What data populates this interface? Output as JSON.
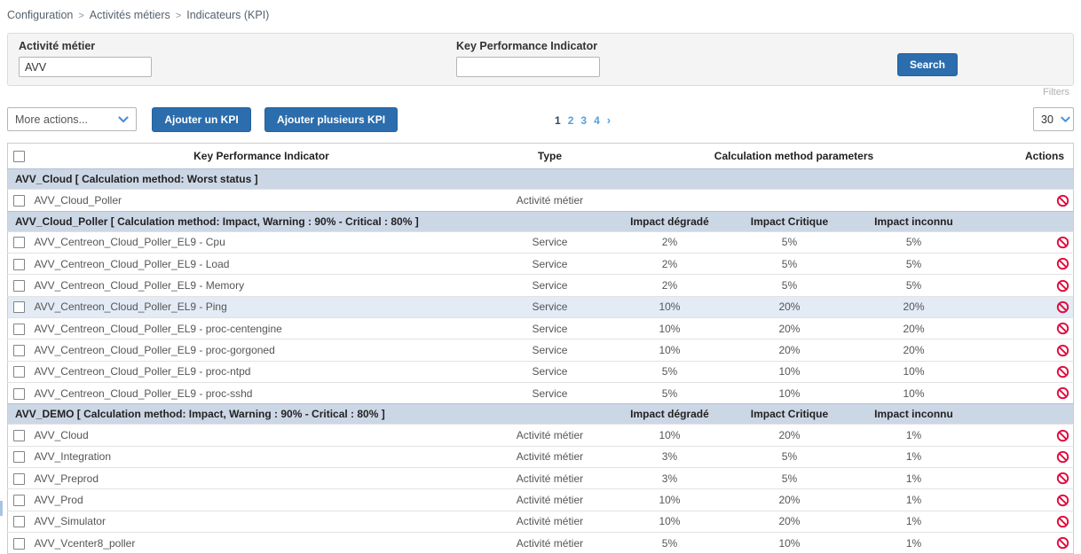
{
  "breadcrumb": {
    "separator": ">",
    "items": [
      "Configuration",
      "Activités métiers",
      "Indicateurs (KPI)"
    ]
  },
  "filters": {
    "business_activity": {
      "label": "Activité métier",
      "value": "AVV"
    },
    "kpi": {
      "label": "Key Performance Indicator",
      "value": ""
    },
    "search_label": "Search",
    "filters_label": "Filters"
  },
  "toolbar": {
    "more_actions_label": "More actions...",
    "add_kpi_label": "Ajouter un KPI",
    "add_multiple_kpi_label": "Ajouter plusieurs KPI",
    "page_size": "30",
    "pagination": {
      "current": "1",
      "pages": [
        "1",
        "2",
        "3",
        "4"
      ],
      "next": "›"
    }
  },
  "table": {
    "headers": {
      "kpi": "Key Performance Indicator",
      "type": "Type",
      "calculation": "Calculation method parameters",
      "actions": "Actions"
    },
    "groups": [
      {
        "title": "AVV_Cloud [ Calculation method: Worst status ]",
        "sub_headers": [
          "",
          "",
          ""
        ],
        "rows": [
          {
            "name": "AVV_Cloud_Poller",
            "type": "Activité métier",
            "degraded": "",
            "critical": "",
            "unknown": "",
            "highlighted": false
          }
        ]
      },
      {
        "title": "AVV_Cloud_Poller [ Calculation method: Impact, Warning : 90% - Critical : 80% ]",
        "sub_headers": [
          "Impact dégradé",
          "Impact Critique",
          "Impact inconnu"
        ],
        "rows": [
          {
            "name": "AVV_Centreon_Cloud_Poller_EL9 - Cpu",
            "type": "Service",
            "degraded": "2%",
            "critical": "5%",
            "unknown": "5%",
            "highlighted": false
          },
          {
            "name": "AVV_Centreon_Cloud_Poller_EL9 - Load",
            "type": "Service",
            "degraded": "2%",
            "critical": "5%",
            "unknown": "5%",
            "highlighted": false
          },
          {
            "name": "AVV_Centreon_Cloud_Poller_EL9 - Memory",
            "type": "Service",
            "degraded": "2%",
            "critical": "5%",
            "unknown": "5%",
            "highlighted": false
          },
          {
            "name": "AVV_Centreon_Cloud_Poller_EL9 - Ping",
            "type": "Service",
            "degraded": "10%",
            "critical": "20%",
            "unknown": "20%",
            "highlighted": true
          },
          {
            "name": "AVV_Centreon_Cloud_Poller_EL9 - proc-centengine",
            "type": "Service",
            "degraded": "10%",
            "critical": "20%",
            "unknown": "20%",
            "highlighted": false
          },
          {
            "name": "AVV_Centreon_Cloud_Poller_EL9 - proc-gorgoned",
            "type": "Service",
            "degraded": "10%",
            "critical": "20%",
            "unknown": "20%",
            "highlighted": false
          },
          {
            "name": "AVV_Centreon_Cloud_Poller_EL9 - proc-ntpd",
            "type": "Service",
            "degraded": "5%",
            "critical": "10%",
            "unknown": "10%",
            "highlighted": false
          },
          {
            "name": "AVV_Centreon_Cloud_Poller_EL9 - proc-sshd",
            "type": "Service",
            "degraded": "5%",
            "critical": "10%",
            "unknown": "10%",
            "highlighted": false
          }
        ]
      },
      {
        "title": "AVV_DEMO [ Calculation method: Impact, Warning : 90% - Critical : 80% ]",
        "sub_headers": [
          "Impact dégradé",
          "Impact Critique",
          "Impact inconnu"
        ],
        "rows": [
          {
            "name": "AVV_Cloud",
            "type": "Activité métier",
            "degraded": "10%",
            "critical": "20%",
            "unknown": "1%",
            "highlighted": false
          },
          {
            "name": "AVV_Integration",
            "type": "Activité métier",
            "degraded": "3%",
            "critical": "5%",
            "unknown": "1%",
            "highlighted": false
          },
          {
            "name": "AVV_Preprod",
            "type": "Activité métier",
            "degraded": "3%",
            "critical": "5%",
            "unknown": "1%",
            "highlighted": false
          },
          {
            "name": "AVV_Prod",
            "type": "Activité métier",
            "degraded": "10%",
            "critical": "20%",
            "unknown": "1%",
            "highlighted": false
          },
          {
            "name": "AVV_Simulator",
            "type": "Activité métier",
            "degraded": "10%",
            "critical": "20%",
            "unknown": "1%",
            "highlighted": false
          },
          {
            "name": "AVV_Vcenter8_poller",
            "type": "Activité métier",
            "degraded": "5%",
            "critical": "10%",
            "unknown": "1%",
            "highlighted": false
          }
        ]
      }
    ]
  },
  "colors": {
    "primary": "#2b6dad",
    "pagination_link": "#54a0dc",
    "danger": "#e00b3d",
    "group_row_bg": "#ccd7e6",
    "highlight_row_bg": "#e3ebf5"
  }
}
